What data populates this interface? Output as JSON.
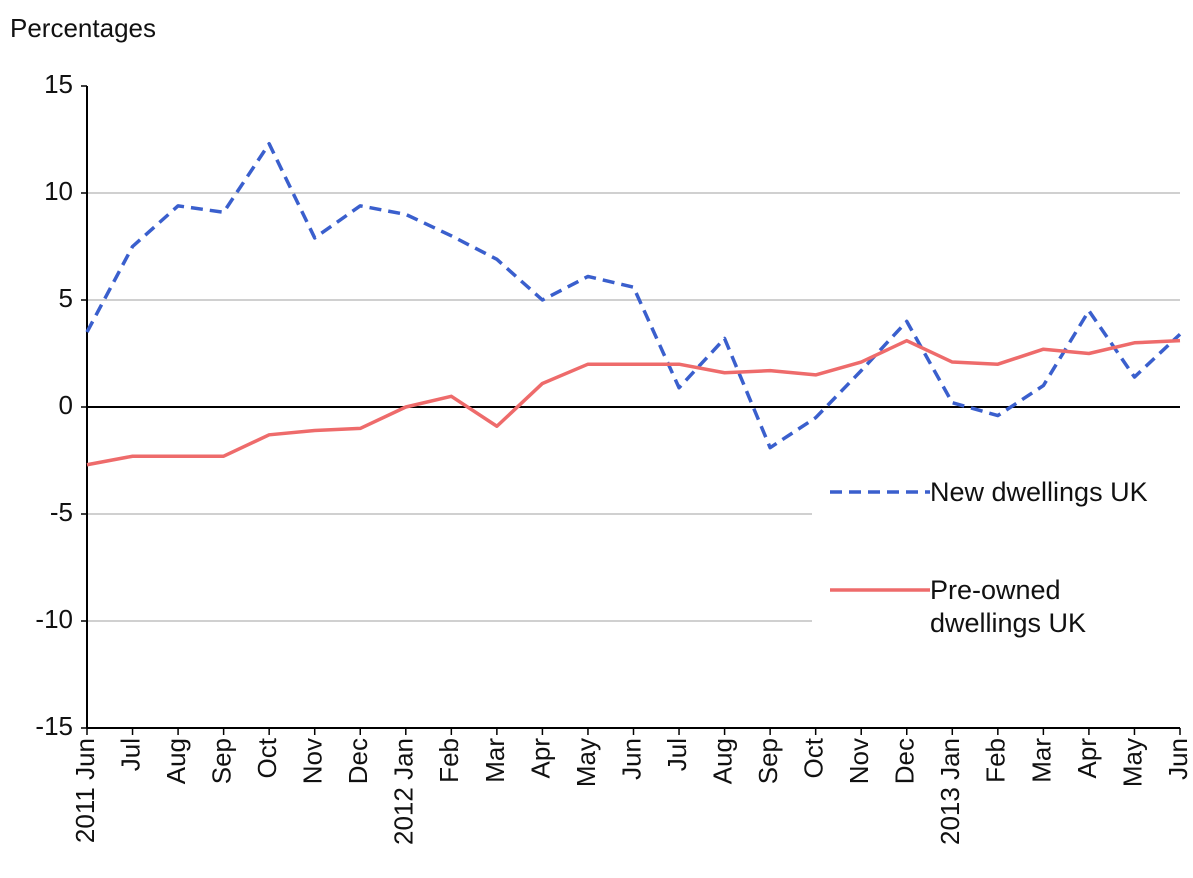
{
  "chart_data": {
    "type": "line",
    "ylabel": "Percentages",
    "categories": [
      "2011 Jun",
      "Jul",
      "Aug",
      "Sep",
      "Oct",
      "Nov",
      "Dec",
      "2012 Jan",
      "Feb",
      "Mar",
      "Apr",
      "May",
      "Jun",
      "Jul",
      "Aug",
      "Sep",
      "Oct",
      "Nov",
      "Dec",
      "2013 Jan",
      "Feb",
      "Mar",
      "Apr",
      "May",
      "Jun"
    ],
    "series": [
      {
        "name": "New dwellings UK",
        "color": "#3a5fcd",
        "dash": true,
        "values": [
          3.5,
          7.5,
          9.4,
          9.1,
          12.3,
          7.9,
          9.4,
          9.0,
          8.0,
          6.9,
          5.0,
          6.1,
          5.6,
          0.9,
          3.2,
          -1.9,
          -0.5,
          1.7,
          4.0,
          0.2,
          -0.4,
          1.0,
          4.5,
          1.4,
          3.4
        ]
      },
      {
        "name": "Pre-owned dwellings UK",
        "color": "#ee6b6b",
        "dash": false,
        "values": [
          -2.7,
          -2.3,
          -2.3,
          -2.3,
          -1.3,
          -1.1,
          -1.0,
          0.0,
          0.5,
          -0.9,
          1.1,
          2.0,
          2.0,
          2.0,
          1.6,
          1.7,
          1.5,
          2.1,
          3.1,
          2.1,
          2.0,
          2.7,
          2.5,
          3.0,
          3.1
        ]
      }
    ],
    "ylim": [
      -15,
      15
    ],
    "yticks": [
      -15,
      -10,
      -5,
      0,
      5,
      10,
      15
    ],
    "grid": true,
    "legend": "right"
  }
}
